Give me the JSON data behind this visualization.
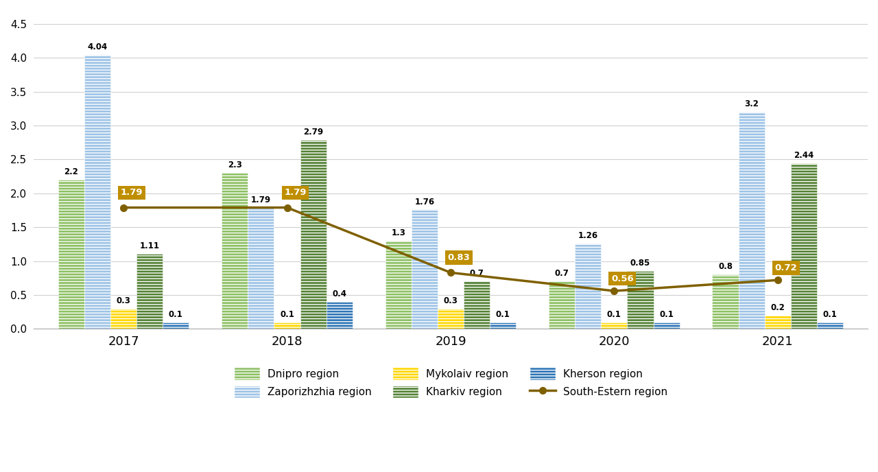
{
  "years": [
    2017,
    2018,
    2019,
    2020,
    2021
  ],
  "dnipro": [
    2.2,
    2.3,
    1.3,
    0.7,
    0.8
  ],
  "zaporizhzhia": [
    4.04,
    1.79,
    1.76,
    1.26,
    3.2
  ],
  "mykolaiv": [
    0.3,
    0.1,
    0.3,
    0.1,
    0.2
  ],
  "kharkiv": [
    1.11,
    2.79,
    0.7,
    0.85,
    2.44
  ],
  "kherson": [
    0.1,
    0.4,
    0.1,
    0.1,
    0.1
  ],
  "south_eastern": [
    1.79,
    1.79,
    0.83,
    0.56,
    0.72
  ],
  "colors": {
    "dnipro": "#8DC063",
    "zaporizhzhia": "#9DC3E6",
    "mykolaiv": "#FFD700",
    "kharkiv": "#548235",
    "kherson": "#2E75B6",
    "south_eastern": "#7F6000"
  },
  "ylim": [
    0,
    4.7
  ],
  "yticks": [
    0,
    0.5,
    1.0,
    1.5,
    2.0,
    2.5,
    3.0,
    3.5,
    4.0,
    4.5
  ],
  "bar_width": 0.16,
  "line_color": "#7F6000",
  "annotation_box_color": "#BF8F00",
  "background_color": "#FFFFFF"
}
